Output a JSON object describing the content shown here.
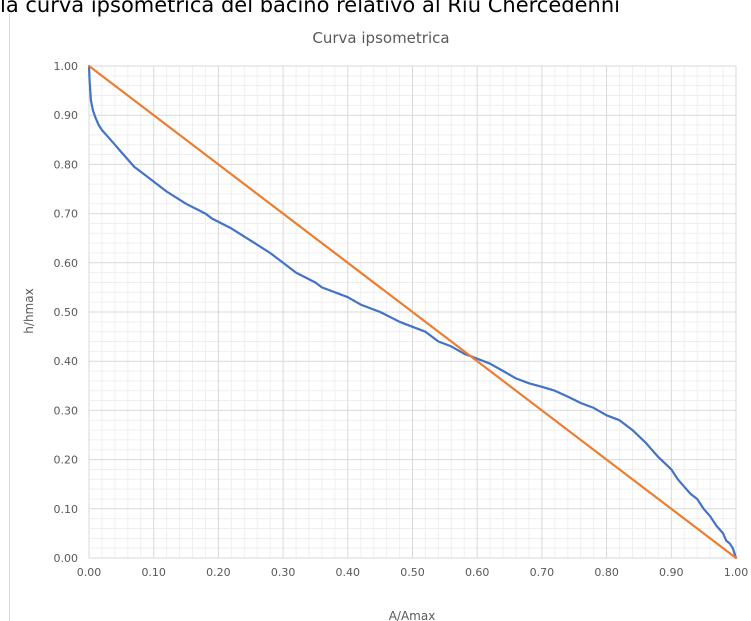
{
  "caption": "la curva ipsometrica del bacino relativo al Riu Chercedenni",
  "colors": {
    "curve": "#4472c4",
    "reference": "#ed7d31",
    "grid_major": "#d9d9d9",
    "grid_minor": "#efefef",
    "text": "#595959"
  },
  "chart_data": {
    "type": "line",
    "title": "Curva ipsometrica",
    "xlabel": "A/Amax",
    "ylabel": "h/hmax",
    "xlim": [
      0,
      1
    ],
    "ylim": [
      0,
      1
    ],
    "xticks": [
      "0.00",
      "0.10",
      "0.20",
      "0.30",
      "0.40",
      "0.50",
      "0.60",
      "0.70",
      "0.80",
      "0.90",
      "1.00"
    ],
    "yticks": [
      "0.00",
      "0.10",
      "0.20",
      "0.30",
      "0.40",
      "0.50",
      "0.60",
      "0.70",
      "0.80",
      "0.90",
      "1.00"
    ],
    "grid": true,
    "minor_grid": true,
    "legend": "none",
    "series": [
      {
        "color": "#4472c4",
        "points": [
          [
            0.0,
            1.0
          ],
          [
            0.001,
            0.97
          ],
          [
            0.003,
            0.93
          ],
          [
            0.006,
            0.91
          ],
          [
            0.01,
            0.895
          ],
          [
            0.015,
            0.88
          ],
          [
            0.02,
            0.87
          ],
          [
            0.03,
            0.855
          ],
          [
            0.04,
            0.84
          ],
          [
            0.05,
            0.825
          ],
          [
            0.06,
            0.81
          ],
          [
            0.07,
            0.795
          ],
          [
            0.08,
            0.785
          ],
          [
            0.1,
            0.765
          ],
          [
            0.12,
            0.745
          ],
          [
            0.15,
            0.72
          ],
          [
            0.18,
            0.7
          ],
          [
            0.19,
            0.69
          ],
          [
            0.22,
            0.67
          ],
          [
            0.25,
            0.645
          ],
          [
            0.28,
            0.62
          ],
          [
            0.3,
            0.6
          ],
          [
            0.32,
            0.58
          ],
          [
            0.35,
            0.56
          ],
          [
            0.36,
            0.55
          ],
          [
            0.4,
            0.53
          ],
          [
            0.42,
            0.515
          ],
          [
            0.45,
            0.5
          ],
          [
            0.48,
            0.48
          ],
          [
            0.5,
            0.47
          ],
          [
            0.52,
            0.46
          ],
          [
            0.54,
            0.44
          ],
          [
            0.56,
            0.43
          ],
          [
            0.58,
            0.415
          ],
          [
            0.6,
            0.405
          ],
          [
            0.62,
            0.395
          ],
          [
            0.64,
            0.38
          ],
          [
            0.66,
            0.365
          ],
          [
            0.68,
            0.355
          ],
          [
            0.7,
            0.348
          ],
          [
            0.72,
            0.34
          ],
          [
            0.74,
            0.328
          ],
          [
            0.76,
            0.315
          ],
          [
            0.78,
            0.305
          ],
          [
            0.8,
            0.29
          ],
          [
            0.82,
            0.28
          ],
          [
            0.84,
            0.26
          ],
          [
            0.86,
            0.235
          ],
          [
            0.87,
            0.22
          ],
          [
            0.88,
            0.205
          ],
          [
            0.9,
            0.18
          ],
          [
            0.91,
            0.16
          ],
          [
            0.92,
            0.145
          ],
          [
            0.93,
            0.13
          ],
          [
            0.94,
            0.12
          ],
          [
            0.95,
            0.1
          ],
          [
            0.96,
            0.085
          ],
          [
            0.97,
            0.065
          ],
          [
            0.98,
            0.05
          ],
          [
            0.985,
            0.035
          ],
          [
            0.99,
            0.03
          ],
          [
            0.995,
            0.02
          ],
          [
            1.0,
            0.0
          ]
        ]
      },
      {
        "color": "#ed7d31",
        "points": [
          [
            0.0,
            1.0
          ],
          [
            1.0,
            0.0
          ]
        ]
      }
    ]
  }
}
